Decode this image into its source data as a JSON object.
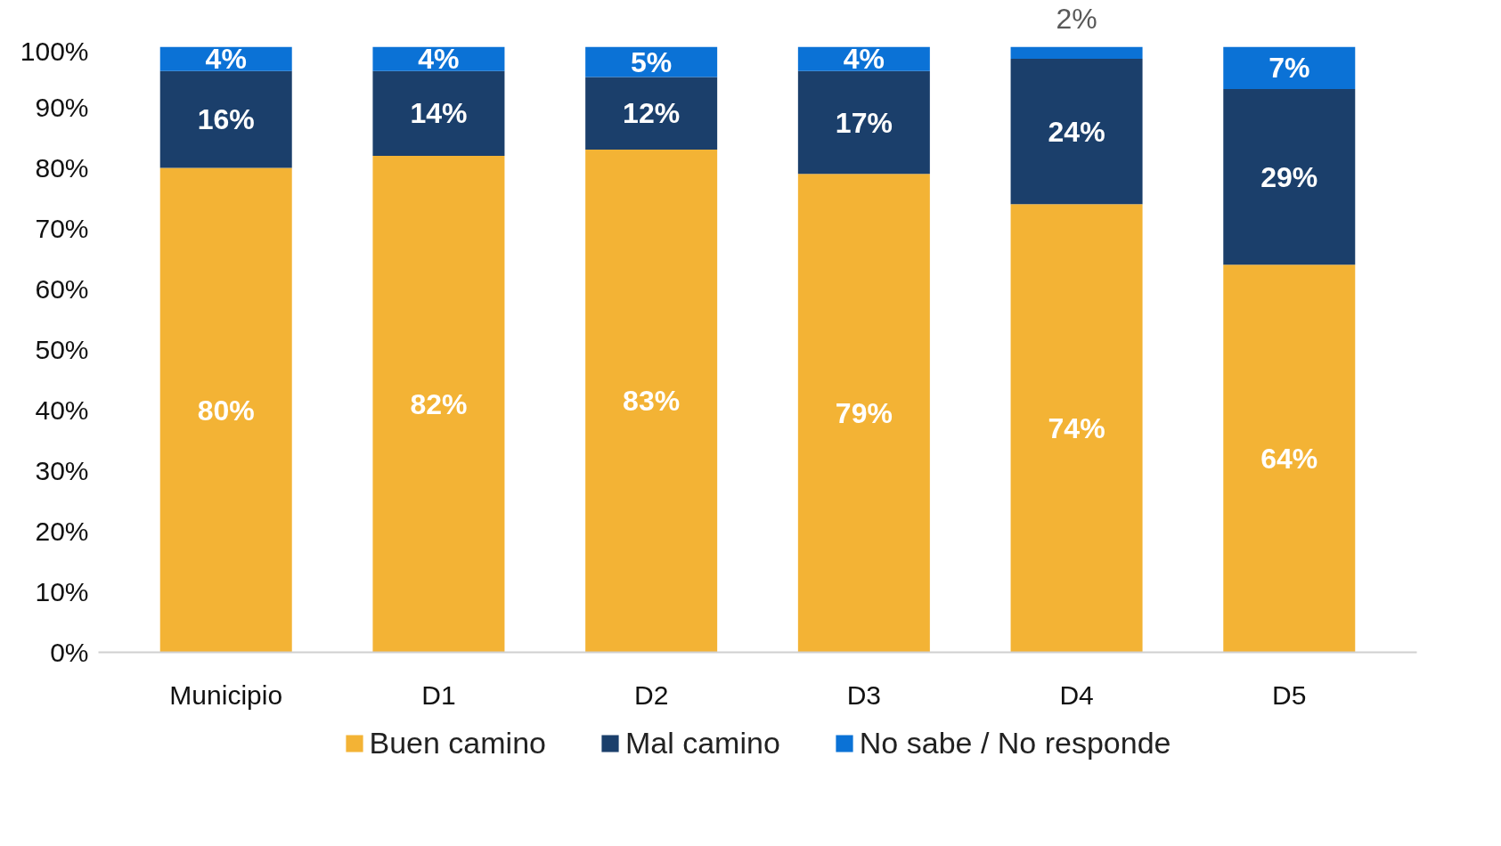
{
  "chart_data": {
    "type": "bar",
    "stacked": true,
    "legend": "bottom",
    "grid": false,
    "categories": [
      "Municipio",
      "D1",
      "D2",
      "D3",
      "D4",
      "D5"
    ],
    "ylim": [
      0,
      100
    ],
    "yticks": [
      {
        "value": 0,
        "label": "0%"
      },
      {
        "value": 10,
        "label": "10%"
      },
      {
        "value": 20,
        "label": "20%"
      },
      {
        "value": 30,
        "label": "30%"
      },
      {
        "value": 40,
        "label": "40%"
      },
      {
        "value": 50,
        "label": "50%"
      },
      {
        "value": 60,
        "label": "60%"
      },
      {
        "value": 70,
        "label": "70%"
      },
      {
        "value": 80,
        "label": "80%"
      },
      {
        "value": 90,
        "label": "90%"
      },
      {
        "value": 100,
        "label": "100%"
      }
    ],
    "series": [
      {
        "name": "Buen camino",
        "color": "#f3b335",
        "values": [
          80,
          82,
          83,
          79,
          74,
          64
        ],
        "value_labels": [
          "80%",
          "82%",
          "83%",
          "79%",
          "74%",
          "64%"
        ]
      },
      {
        "name": "Mal camino",
        "color": "#1b3f6b",
        "values": [
          16,
          14,
          12,
          17,
          24,
          29
        ],
        "value_labels": [
          "16%",
          "14%",
          "12%",
          "17%",
          "24%",
          "29%"
        ]
      },
      {
        "name": "No sabe / No responde",
        "color": "#0b72d6",
        "values": [
          4,
          4,
          5,
          4,
          2,
          7
        ],
        "value_labels": [
          "4%",
          "4%",
          "5%",
          "4%",
          "2%",
          "7%"
        ]
      }
    ]
  }
}
